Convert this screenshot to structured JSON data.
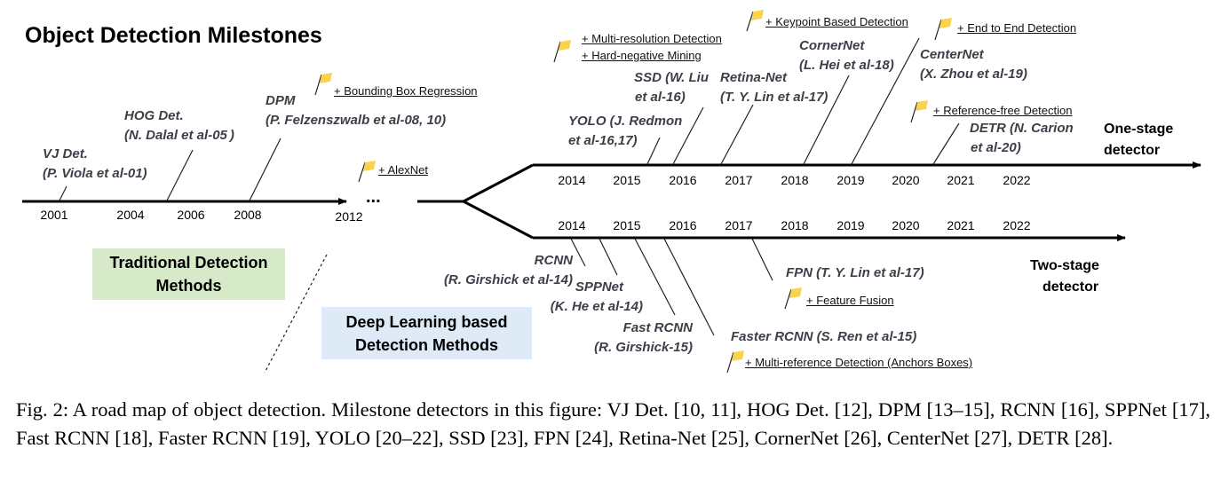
{
  "title": "Object Detection Milestones",
  "colors": {
    "flag": "#f9d34e",
    "traditional_box": "#d6e9c8",
    "deep_box": "#deebf6",
    "label": "#3b3f48"
  },
  "traditional": {
    "years": [
      "2001",
      "2004",
      "2006",
      "2008",
      "2012"
    ],
    "ellipsis": "...",
    "milestones": [
      {
        "name": "VJ Det.",
        "ref": "(P. Viola et al-01)"
      },
      {
        "name": "HOG Det.",
        "ref": "(N. Dalal et al-05 )"
      },
      {
        "name": "DPM",
        "ref": "(P. Felzenszwalb et al-08, 10)"
      }
    ],
    "flags": [
      "+ Bounding Box Regression",
      "+ AlexNet"
    ]
  },
  "one_stage": {
    "label_line1": "One-stage",
    "label_line2": "detector",
    "years": [
      "2014",
      "2015",
      "2016",
      "2017",
      "2018",
      "2019",
      "2020",
      "2021",
      "2022"
    ],
    "milestones": [
      {
        "name": "YOLO (J. Redmon",
        "ref": "et al-16,17)"
      },
      {
        "name": "SSD (W. Liu",
        "ref": "et al-16)"
      },
      {
        "name": "Retina-Net",
        "ref": "(T. Y. Lin et al-17)"
      },
      {
        "name": "CornerNet",
        "ref": "(L. Hei et al-18)"
      },
      {
        "name": "CenterNet",
        "ref": "(X. Zhou et al-19)"
      },
      {
        "name": "DETR (N. Carion",
        "ref": "et al-20)"
      }
    ],
    "flags": [
      "+ Multi-resolution Detection",
      "+ Hard-negative Mining",
      "+ Keypoint Based Detection",
      "+ End to End Detection",
      "+ Reference-free Detection"
    ]
  },
  "two_stage": {
    "label_line1": "Two-stage",
    "label_line2": "detector",
    "years": [
      "2014",
      "2015",
      "2016",
      "2017",
      "2018",
      "2019",
      "2020",
      "2021",
      "2022"
    ],
    "milestones": [
      {
        "name": "RCNN",
        "ref": "(R. Girshick et al-14)"
      },
      {
        "name": "SPPNet",
        "ref": "(K. He et al-14)"
      },
      {
        "name": "Fast RCNN",
        "ref": "(R. Girshick-15)"
      },
      {
        "name": "Faster RCNN (S. Ren et al-15)"
      },
      {
        "name": "FPN (T. Y. Lin et al-17)"
      }
    ],
    "flags": [
      "+ Feature Fusion",
      "+ Multi-reference Detection (Anchors Boxes)"
    ]
  },
  "boxes": {
    "traditional": "Traditional Detection Methods",
    "deep": "Deep Learning based Detection Methods"
  },
  "caption": "Fig. 2: A road map of object detection. Milestone detectors in this figure: VJ Det. [10, 11], HOG Det. [12], DPM [13–15], RCNN [16], SPPNet [17], Fast RCNN [18], Faster RCNN [19], YOLO [20–22], SSD [23], FPN [24], Retina-Net [25], CornerNet [26], CenterNet [27], DETR [28]."
}
